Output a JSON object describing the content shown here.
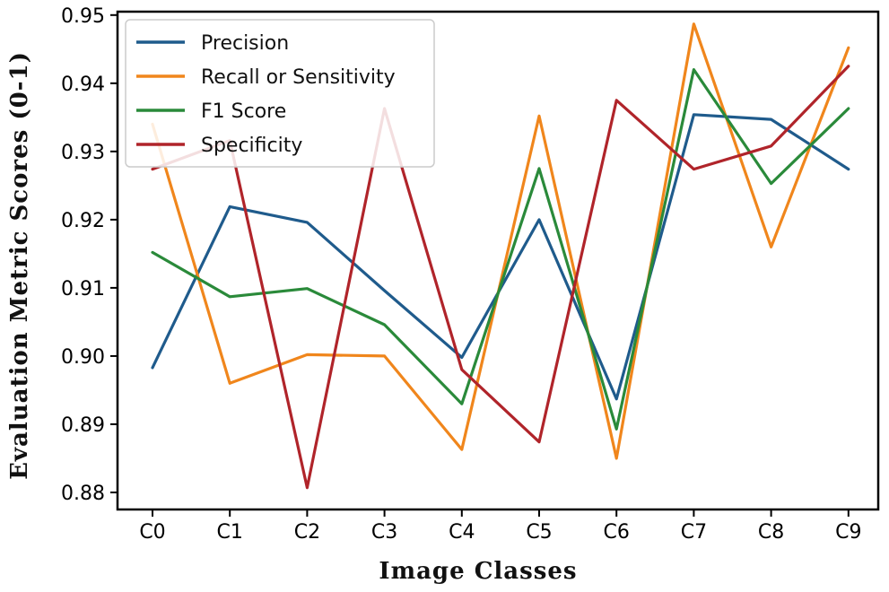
{
  "chart_data": {
    "type": "line",
    "title": "",
    "xlabel": "Image Classes",
    "ylabel": "Evaluation Metric Scores (0-1)",
    "categories": [
      "C0",
      "C1",
      "C2",
      "C3",
      "C4",
      "C5",
      "C6",
      "C7",
      "C8",
      "C9"
    ],
    "ylim": [
      0.8775,
      0.9505
    ],
    "yticks": [
      0.88,
      0.89,
      0.9,
      0.91,
      0.92,
      0.93,
      0.94,
      0.95
    ],
    "ytick_labels": [
      "0.88",
      "0.89",
      "0.90",
      "0.91",
      "0.92",
      "0.93",
      "0.94",
      "0.95"
    ],
    "grid": false,
    "legend_position": "top-left",
    "series": [
      {
        "name": "Precision",
        "color": "#1f5b8c",
        "values": [
          0.8983,
          0.9219,
          0.9196,
          0.9096,
          0.8998,
          0.92,
          0.8937,
          0.9354,
          0.9347,
          0.9274
        ]
      },
      {
        "name": "Recall or Sensitivity",
        "color": "#f0861c",
        "values": [
          0.934,
          0.896,
          0.9002,
          0.9,
          0.8863,
          0.9352,
          0.885,
          0.9487,
          0.916,
          0.9452
        ]
      },
      {
        "name": "F1 Score",
        "color": "#2a8a3a",
        "values": [
          0.9152,
          0.9087,
          0.9099,
          0.9046,
          0.893,
          0.9275,
          0.8893,
          0.942,
          0.9253,
          0.9363
        ]
      },
      {
        "name": "Specificity",
        "color": "#b0242a",
        "values": [
          0.9274,
          0.9316,
          0.8807,
          0.9363,
          0.898,
          0.8874,
          0.9375,
          0.9274,
          0.9308,
          0.9425
        ]
      }
    ]
  }
}
